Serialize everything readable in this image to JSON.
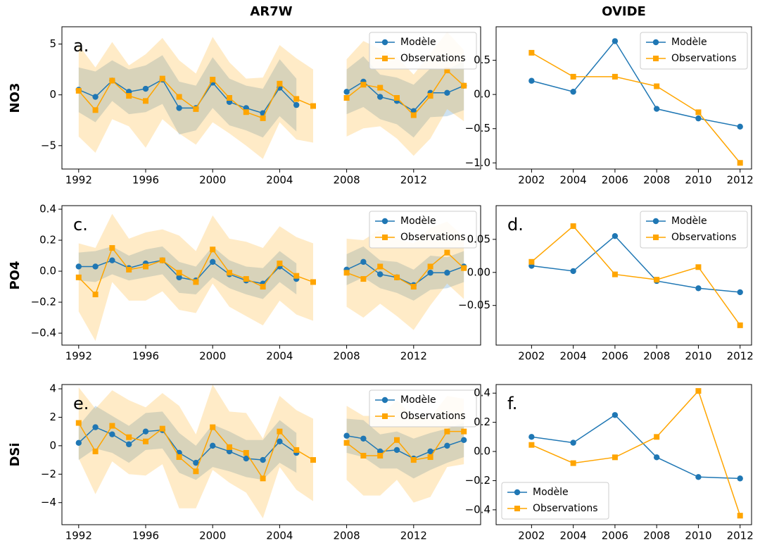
{
  "chart_data": [
    {
      "type": "line",
      "title": "AR7W",
      "ylabel": "NO3",
      "annotation": "a.",
      "legend": "upper right",
      "x": [
        1992,
        1993,
        1994,
        1995,
        1996,
        1997,
        1998,
        1999,
        2000,
        2001,
        2002,
        2003,
        2004,
        2005,
        2006,
        2007,
        2008,
        2009,
        2010,
        2011,
        2012,
        2013,
        2014,
        2015
      ],
      "xlim": [
        1991,
        2016
      ],
      "xticks": [
        1992,
        1996,
        2000,
        2004,
        2008,
        2012
      ],
      "ylim": [
        -7.3,
        6.7
      ],
      "yticks": [
        {
          "value": -5,
          "label": "−5"
        },
        0,
        5
      ],
      "series": [
        {
          "name": "Modèle",
          "color": "#1f77b4",
          "marker": "circle",
          "values": [
            0.5,
            -0.2,
            1.4,
            0.3,
            0.6,
            1.5,
            -1.3,
            -1.3,
            1.2,
            -0.7,
            -1.3,
            -1.8,
            0.7,
            -1.0,
            null,
            null,
            0.3,
            1.3,
            -0.2,
            -0.6,
            -1.6,
            0.2,
            0.2,
            0.9
          ],
          "errors": [
            2.2,
            2.5,
            2.0,
            2.2,
            2.3,
            2.4,
            2.6,
            2.2,
            2.5,
            2.3,
            2.2,
            2.4,
            2.8,
            2.6,
            null,
            null,
            2.2,
            2.5,
            2.2,
            2.3,
            2.6,
            2.4,
            2.3,
            2.4
          ]
        },
        {
          "name": "Observations",
          "color": "#ffa500",
          "marker": "square",
          "values": [
            0.4,
            -1.5,
            1.4,
            -0.1,
            -0.6,
            1.6,
            -0.2,
            -1.4,
            1.5,
            -0.3,
            -1.7,
            -2.3,
            1.1,
            -0.4,
            -1.1,
            null,
            -0.3,
            1.0,
            0.7,
            -0.3,
            -2.0,
            -0.1,
            2.4,
            0.9
          ],
          "errors": [
            4.5,
            4.2,
            3.8,
            3.0,
            4.6,
            4.0,
            3.6,
            3.5,
            4.2,
            3.5,
            3.3,
            4.0,
            3.8,
            4.0,
            3.6,
            null,
            3.8,
            4.3,
            3.8,
            4.0,
            4.0,
            4.2,
            3.8,
            3.5
          ]
        }
      ]
    },
    {
      "type": "line",
      "title": "OVIDE",
      "legend": "upper right",
      "x": [
        2002,
        2004,
        2006,
        2008,
        2010,
        2012
      ],
      "xlim": [
        2000.3,
        2012.55
      ],
      "xticks": [
        2002,
        2004,
        2006,
        2008,
        2010,
        2012
      ],
      "ylim": [
        -1.09,
        0.99
      ],
      "yticks": [
        {
          "value": -1,
          "label": "−1.0"
        },
        {
          "value": -0.5,
          "label": "−0.5"
        },
        {
          "value": 0,
          "label": "0.0"
        },
        0.5
      ],
      "series": [
        {
          "name": "Modèle",
          "color": "#1f77b4",
          "marker": "circle",
          "values": [
            0.2,
            0.04,
            0.78,
            -0.21,
            -0.35,
            -0.47
          ]
        },
        {
          "name": "Observations",
          "color": "#ffa500",
          "marker": "square",
          "values": [
            0.61,
            0.26,
            0.26,
            0.12,
            -0.26,
            -1.0
          ]
        }
      ]
    },
    {
      "type": "line",
      "ylabel": "PO4",
      "annotation": "c.",
      "legend": "upper right",
      "x": [
        1992,
        1993,
        1994,
        1995,
        1996,
        1997,
        1998,
        1999,
        2000,
        2001,
        2002,
        2003,
        2004,
        2005,
        2006,
        2007,
        2008,
        2009,
        2010,
        2011,
        2012,
        2013,
        2014,
        2015
      ],
      "xlim": [
        1991,
        2016
      ],
      "xticks": [
        1992,
        1996,
        2000,
        2004,
        2008,
        2012
      ],
      "ylim": [
        -0.477,
        0.423
      ],
      "yticks": [
        {
          "value": -0.4,
          "label": "−0.4"
        },
        {
          "value": -0.2,
          "label": "−0.2"
        },
        {
          "value": 0,
          "label": "0.0"
        },
        0.2,
        0.4
      ],
      "series": [
        {
          "name": "Modèle",
          "color": "#1f77b4",
          "marker": "circle",
          "values": [
            0.03,
            0.03,
            0.07,
            0.02,
            0.05,
            0.07,
            -0.04,
            -0.06,
            0.06,
            -0.02,
            -0.06,
            -0.08,
            0.03,
            -0.05,
            null,
            null,
            0.01,
            0.06,
            -0.02,
            -0.04,
            -0.09,
            -0.01,
            -0.01,
            0.03
          ],
          "errors": [
            0.09,
            0.1,
            0.09,
            0.08,
            0.09,
            0.09,
            0.1,
            0.09,
            0.1,
            0.09,
            0.09,
            0.1,
            0.1,
            0.1,
            null,
            null,
            0.1,
            0.1,
            0.09,
            0.1,
            0.1,
            0.11,
            0.1,
            0.1
          ]
        },
        {
          "name": "Observations",
          "color": "#ffa500",
          "marker": "square",
          "values": [
            -0.04,
            -0.15,
            0.15,
            0.01,
            0.03,
            0.07,
            -0.01,
            -0.07,
            0.14,
            -0.01,
            -0.05,
            -0.1,
            0.05,
            -0.03,
            -0.07,
            null,
            -0.01,
            -0.05,
            0.03,
            -0.04,
            -0.1,
            0.03,
            0.12,
            0.02
          ],
          "errors": [
            0.22,
            0.3,
            0.22,
            0.2,
            0.22,
            0.2,
            0.24,
            0.2,
            0.22,
            0.22,
            0.24,
            0.25,
            0.24,
            0.25,
            0.25,
            null,
            0.22,
            0.25,
            0.24,
            0.25,
            0.28,
            0.25,
            0.2,
            0.2
          ]
        }
      ]
    },
    {
      "type": "line",
      "annotation": "d.",
      "legend": "upper right",
      "x": [
        2002,
        2004,
        2006,
        2008,
        2010,
        2012
      ],
      "xlim": [
        2000.3,
        2012.55
      ],
      "xticks": [
        2002,
        2004,
        2006,
        2008,
        2010,
        2012
      ],
      "ylim": [
        -0.11,
        0.101
      ],
      "yticks": [
        {
          "value": -0.05,
          "label": "−0.05"
        },
        {
          "value": 0,
          "label": "0.00"
        },
        0.05
      ],
      "series": [
        {
          "name": "Modèle",
          "color": "#1f77b4",
          "marker": "circle",
          "values": [
            0.01,
            0.002,
            0.055,
            -0.013,
            -0.024,
            -0.03
          ]
        },
        {
          "name": "Observations",
          "color": "#ffa500",
          "marker": "square",
          "values": [
            0.016,
            0.07,
            -0.003,
            -0.011,
            0.008,
            -0.08
          ]
        }
      ]
    },
    {
      "type": "line",
      "ylabel": "DSi",
      "annotation": "e.",
      "legend": "upper right",
      "x": [
        1992,
        1993,
        1994,
        1995,
        1996,
        1997,
        1998,
        1999,
        2000,
        2001,
        2002,
        2003,
        2004,
        2005,
        2006,
        2007,
        2008,
        2009,
        2010,
        2011,
        2012,
        2013,
        2014,
        2015
      ],
      "xlim": [
        1991,
        2016
      ],
      "xticks": [
        1992,
        1996,
        2000,
        2004,
        2008,
        2012
      ],
      "ylim": [
        -5.55,
        4.3
      ],
      "yticks": [
        {
          "value": -4,
          "label": "−4"
        },
        {
          "value": -2,
          "label": "−2"
        },
        0,
        2,
        4
      ],
      "series": [
        {
          "name": "Modèle",
          "color": "#1f77b4",
          "marker": "circle",
          "values": [
            0.2,
            1.3,
            0.8,
            0.1,
            1.0,
            1.1,
            -0.5,
            -1.2,
            0.0,
            -0.4,
            -0.9,
            -1.0,
            0.3,
            -0.5,
            null,
            null,
            0.7,
            0.5,
            -0.4,
            -0.3,
            -0.9,
            -0.4,
            0.0,
            0.4
          ],
          "errors": [
            1.2,
            1.5,
            1.3,
            1.3,
            1.3,
            1.3,
            1.4,
            1.2,
            1.5,
            1.4,
            1.3,
            1.4,
            1.5,
            1.4,
            null,
            null,
            1.2,
            1.3,
            1.2,
            1.3,
            1.4,
            1.3,
            1.2,
            1.2
          ]
        },
        {
          "name": "Observations",
          "color": "#ffa500",
          "marker": "square",
          "values": [
            1.6,
            -0.4,
            1.4,
            0.6,
            0.3,
            1.2,
            -0.8,
            -1.8,
            1.3,
            -0.1,
            -0.5,
            -2.3,
            1.0,
            -0.3,
            -1.0,
            null,
            0.2,
            -0.7,
            -0.7,
            0.4,
            -1.0,
            -0.8,
            1.0,
            1.0
          ],
          "errors": [
            2.5,
            3.0,
            2.5,
            2.6,
            2.4,
            2.5,
            3.6,
            2.6,
            3.0,
            2.5,
            2.8,
            2.8,
            2.5,
            2.8,
            2.9,
            null,
            2.6,
            2.8,
            2.8,
            2.8,
            3.0,
            2.8,
            2.5,
            2.3
          ]
        }
      ]
    },
    {
      "type": "line",
      "annotation": "f.",
      "legend": "lower left",
      "x": [
        2002,
        2004,
        2006,
        2008,
        2010,
        2012
      ],
      "xlim": [
        2000.3,
        2012.55
      ],
      "xticks": [
        2002,
        2004,
        2006,
        2008,
        2010,
        2012
      ],
      "ylim": [
        -0.502,
        0.459
      ],
      "yticks": [
        {
          "value": -0.4,
          "label": "−0.4"
        },
        {
          "value": -0.2,
          "label": "−0.2"
        },
        {
          "value": 0,
          "label": "0.0"
        },
        0.2,
        0.4
      ],
      "series": [
        {
          "name": "Modèle",
          "color": "#1f77b4",
          "marker": "circle",
          "values": [
            0.1,
            0.06,
            0.25,
            -0.04,
            -0.175,
            -0.185
          ]
        },
        {
          "name": "Observations",
          "color": "#ffa500",
          "marker": "square",
          "values": [
            0.045,
            -0.08,
            -0.04,
            0.1,
            0.415,
            -0.44
          ]
        }
      ]
    }
  ]
}
